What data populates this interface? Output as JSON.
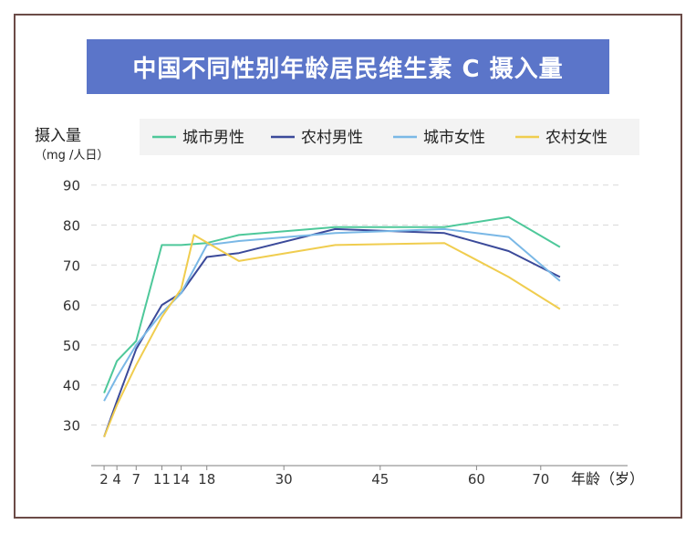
{
  "chart_data": {
    "type": "line",
    "title": "中国不同性别年龄居民维生素 C 摄入量",
    "ylabel": "摄入量",
    "yunit": "（mg /人日）",
    "xlabel": "年龄（岁）",
    "ylim": [
      20,
      90
    ],
    "xlim": [
      0,
      80
    ],
    "yticks": [
      30,
      40,
      50,
      60,
      70,
      80,
      90
    ],
    "xticks": [
      2,
      4,
      7,
      11,
      14,
      18,
      30,
      45,
      60,
      70
    ],
    "grid": "horizontal dashed",
    "legend_position": "top",
    "series": [
      {
        "name": "城市男性",
        "color": "#4ec89a",
        "points": [
          [
            2,
            38
          ],
          [
            4,
            46
          ],
          [
            7,
            51
          ],
          [
            11,
            75
          ],
          [
            14,
            75
          ],
          [
            18,
            75.5
          ],
          [
            23,
            77.5
          ],
          [
            38,
            79.5
          ],
          [
            55,
            79.5
          ],
          [
            65,
            82
          ],
          [
            73,
            74.5
          ]
        ]
      },
      {
        "name": "农村男性",
        "color": "#3b4a9a",
        "points": [
          [
            2,
            27
          ],
          [
            4,
            36
          ],
          [
            7,
            49
          ],
          [
            11,
            60
          ],
          [
            14,
            63
          ],
          [
            18,
            72
          ],
          [
            23,
            73
          ],
          [
            38,
            79
          ],
          [
            55,
            78
          ],
          [
            65,
            73.5
          ],
          [
            73,
            67
          ]
        ]
      },
      {
        "name": "城市女性",
        "color": "#7ab8e6",
        "points": [
          [
            2,
            36
          ],
          [
            4,
            42
          ],
          [
            7,
            50
          ],
          [
            11,
            58
          ],
          [
            14,
            63
          ],
          [
            18,
            75
          ],
          [
            23,
            76
          ],
          [
            38,
            78
          ],
          [
            55,
            79
          ],
          [
            65,
            77
          ],
          [
            73,
            66
          ]
        ]
      },
      {
        "name": "农村女性",
        "color": "#f0cd4f",
        "points": [
          [
            2,
            27
          ],
          [
            4,
            35
          ],
          [
            7,
            45
          ],
          [
            11,
            57
          ],
          [
            14,
            64
          ],
          [
            16,
            77.5
          ],
          [
            23,
            71
          ],
          [
            38,
            75
          ],
          [
            55,
            75.5
          ],
          [
            65,
            67
          ],
          [
            73,
            59
          ]
        ]
      }
    ]
  }
}
